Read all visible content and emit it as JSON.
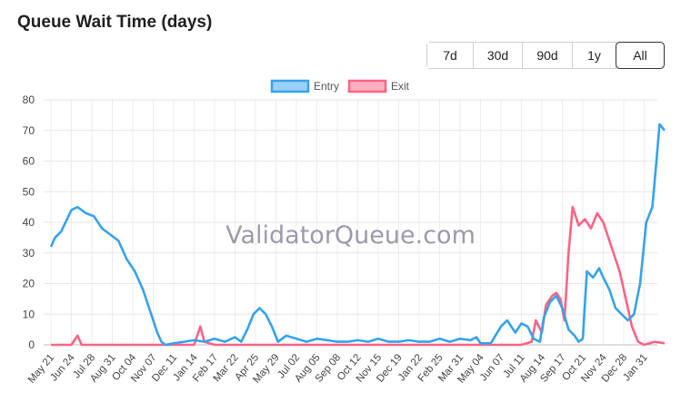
{
  "title": "Queue Wait Time (days)",
  "range_buttons": [
    {
      "label": "7d",
      "active": false
    },
    {
      "label": "30d",
      "active": false
    },
    {
      "label": "90d",
      "active": false
    },
    {
      "label": "1y",
      "active": false
    },
    {
      "label": "All",
      "active": true
    }
  ],
  "watermark": "ValidatorQueue.com",
  "chart_data": {
    "type": "line",
    "title": "",
    "xlabel": "",
    "ylabel": "",
    "ylim": [
      0,
      80
    ],
    "yticks": [
      0,
      10,
      20,
      30,
      40,
      50,
      60,
      70,
      80
    ],
    "grid": true,
    "legend_position": "top-center",
    "x_tick_labels": [
      "May 21",
      "Jun 24",
      "Jul 28",
      "Aug 31",
      "Oct 04",
      "Nov 07",
      "Dec 11",
      "Jan 14",
      "Feb 17",
      "Mar 22",
      "Apr 25",
      "May 29",
      "Jul 02",
      "Aug 05",
      "Sep 08",
      "Oct 12",
      "Nov 15",
      "Dec 19",
      "Jan 22",
      "Feb 25",
      "Mar 31",
      "May 04",
      "Jun 07",
      "Jul 11",
      "Aug 14",
      "Sep 17",
      "Oct 21",
      "Nov 24",
      "Dec 28",
      "Jan 31"
    ],
    "series": [
      {
        "name": "Entry",
        "color": "#36a2eb",
        "fill": "#9ad0f5",
        "points": [
          [
            0,
            32
          ],
          [
            0.2,
            35
          ],
          [
            0.5,
            37
          ],
          [
            1,
            44
          ],
          [
            1.3,
            45
          ],
          [
            1.7,
            43
          ],
          [
            2.1,
            42
          ],
          [
            2.5,
            38
          ],
          [
            2.9,
            36
          ],
          [
            3.3,
            34
          ],
          [
            3.7,
            28
          ],
          [
            4.1,
            24
          ],
          [
            4.5,
            18
          ],
          [
            4.9,
            10
          ],
          [
            5.2,
            4
          ],
          [
            5.4,
            1
          ],
          [
            5.6,
            0
          ],
          [
            6,
            0.5
          ],
          [
            6.5,
            1
          ],
          [
            7,
            1.5
          ],
          [
            7.5,
            1
          ],
          [
            8,
            2
          ],
          [
            8.5,
            1
          ],
          [
            9,
            2.5
          ],
          [
            9.3,
            1
          ],
          [
            9.6,
            5
          ],
          [
            9.9,
            10
          ],
          [
            10.2,
            12
          ],
          [
            10.5,
            10
          ],
          [
            10.8,
            6
          ],
          [
            11.1,
            1
          ],
          [
            11.5,
            3
          ],
          [
            12,
            2
          ],
          [
            12.5,
            1
          ],
          [
            13,
            2
          ],
          [
            13.5,
            1.5
          ],
          [
            14,
            1
          ],
          [
            14.5,
            1
          ],
          [
            15,
            1.5
          ],
          [
            15.5,
            1
          ],
          [
            16,
            2
          ],
          [
            16.5,
            1
          ],
          [
            17,
            1
          ],
          [
            17.5,
            1.5
          ],
          [
            18,
            1
          ],
          [
            18.5,
            1
          ],
          [
            19,
            2
          ],
          [
            19.5,
            1
          ],
          [
            20,
            2
          ],
          [
            20.5,
            1.5
          ],
          [
            20.8,
            2.5
          ],
          [
            21,
            0.5
          ],
          [
            21.5,
            0.5
          ],
          [
            22,
            6
          ],
          [
            22.3,
            8
          ],
          [
            22.7,
            4
          ],
          [
            23,
            7
          ],
          [
            23.3,
            6
          ],
          [
            23.6,
            2
          ],
          [
            23.9,
            1
          ],
          [
            24.1,
            9
          ],
          [
            24.4,
            14
          ],
          [
            24.7,
            16
          ],
          [
            25,
            12
          ],
          [
            25.3,
            5
          ],
          [
            25.6,
            3
          ],
          [
            25.8,
            1
          ],
          [
            26,
            2
          ],
          [
            26.2,
            24
          ],
          [
            26.5,
            22
          ],
          [
            26.8,
            25
          ],
          [
            27,
            22
          ],
          [
            27.3,
            18
          ],
          [
            27.6,
            12
          ],
          [
            27.9,
            10
          ],
          [
            28.2,
            8
          ],
          [
            28.5,
            10
          ],
          [
            28.8,
            20
          ],
          [
            29.1,
            40
          ],
          [
            29.4,
            45
          ],
          [
            29.6,
            60
          ],
          [
            29.75,
            72
          ],
          [
            30,
            70
          ]
        ]
      },
      {
        "name": "Exit",
        "color": "#ff6384",
        "fill": "#ffb1c1",
        "points": [
          [
            0,
            0
          ],
          [
            1,
            0
          ],
          [
            1.3,
            3
          ],
          [
            1.5,
            0
          ],
          [
            5,
            0
          ],
          [
            6,
            0
          ],
          [
            7,
            0
          ],
          [
            7.3,
            6
          ],
          [
            7.5,
            1
          ],
          [
            8,
            0
          ],
          [
            10,
            0
          ],
          [
            12,
            0
          ],
          [
            14,
            0
          ],
          [
            16,
            0
          ],
          [
            18,
            0
          ],
          [
            20,
            0
          ],
          [
            22,
            0
          ],
          [
            23,
            0
          ],
          [
            23.5,
            1
          ],
          [
            23.7,
            8
          ],
          [
            24,
            4
          ],
          [
            24.2,
            13
          ],
          [
            24.5,
            16
          ],
          [
            24.7,
            17
          ],
          [
            24.9,
            15
          ],
          [
            25.1,
            8
          ],
          [
            25.3,
            30
          ],
          [
            25.5,
            45
          ],
          [
            25.8,
            39
          ],
          [
            26.1,
            41
          ],
          [
            26.4,
            38
          ],
          [
            26.7,
            43
          ],
          [
            27,
            40
          ],
          [
            27.4,
            32
          ],
          [
            27.8,
            24
          ],
          [
            28.1,
            15
          ],
          [
            28.4,
            6
          ],
          [
            28.7,
            1
          ],
          [
            29,
            0
          ],
          [
            29.5,
            1
          ],
          [
            30,
            0.5
          ]
        ]
      }
    ]
  }
}
